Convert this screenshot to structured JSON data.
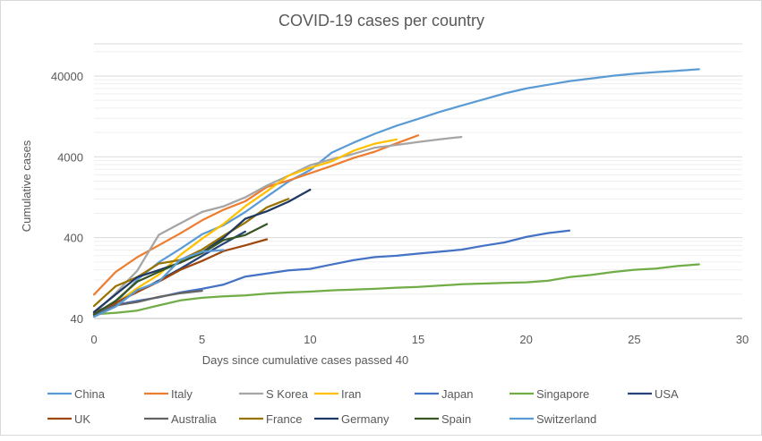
{
  "chart_data": {
    "type": "line",
    "title": "COVID-19 cases per country",
    "xlabel": "Days since cumulative cases passed 40",
    "ylabel": "Cumulative cases",
    "xlim": [
      0,
      30
    ],
    "ylim": [
      40,
      100000
    ],
    "yscale": "log",
    "x_ticks": [
      "0",
      "5",
      "10",
      "15",
      "20",
      "25",
      "30"
    ],
    "y_ticks": [
      "40",
      "400",
      "4000",
      "40000"
    ],
    "x_tick_values": [
      0,
      5,
      10,
      15,
      20,
      25,
      30
    ],
    "y_tick_values": [
      40,
      400,
      4000,
      40000
    ],
    "grid": "horizontal major and minor",
    "legend_position": "bottom",
    "series": [
      {
        "name": "China",
        "color": "#5b9bd5",
        "x": [
          0,
          1,
          2,
          3,
          4,
          5,
          6,
          7,
          8,
          9,
          10,
          11,
          12,
          13,
          14,
          15,
          16,
          17,
          18,
          19,
          20,
          21,
          22,
          23,
          24,
          25,
          26,
          27,
          28
        ],
        "y": [
          45,
          62,
          121,
          198,
          291,
          440,
          571,
          830,
          1287,
          1975,
          2744,
          4515,
          5974,
          7711,
          9692,
          11791,
          14380,
          17205,
          20438,
          24324,
          28018,
          31161,
          34546,
          37198,
          40171,
          42638,
          44653,
          46472,
          48467
        ]
      },
      {
        "name": "Italy",
        "color": "#ed7d31",
        "x": [
          0,
          1,
          2,
          3,
          4,
          5,
          6,
          7,
          8,
          9,
          10,
          11,
          12,
          13,
          14,
          15
        ],
        "y": [
          79,
          150,
          229,
          322,
          453,
          655,
          888,
          1128,
          1694,
          2036,
          2502,
          3089,
          3858,
          4636,
          5883,
          7375
        ]
      },
      {
        "name": "S Korea",
        "color": "#a5a5a5",
        "x": [
          0,
          1,
          2,
          3,
          4,
          5,
          6,
          7,
          8,
          9,
          10,
          11,
          12,
          13,
          14,
          15,
          16,
          17
        ],
        "y": [
          46,
          82,
          156,
          433,
          602,
          833,
          977,
          1261,
          1766,
          2337,
          3150,
          3736,
          4335,
          5186,
          5621,
          6088,
          6593,
          7041
        ]
      },
      {
        "name": "Iran",
        "color": "#ffc000",
        "x": [
          0,
          1,
          2,
          3,
          4,
          5,
          6,
          7,
          8,
          9,
          10,
          11,
          12,
          13,
          14
        ],
        "y": [
          43,
          61,
          95,
          139,
          245,
          388,
          593,
          978,
          1501,
          2336,
          2922,
          3513,
          4747,
          5823,
          6566
        ]
      },
      {
        "name": "Japan",
        "color": "#4472c4",
        "x": [
          0,
          1,
          2,
          3,
          4,
          5,
          6,
          7,
          8,
          9,
          10,
          11,
          12,
          13,
          14,
          15,
          16,
          17,
          18,
          19,
          20,
          21,
          22
        ],
        "y": [
          45,
          59,
          66,
          73,
          84,
          93,
          105,
          132,
          144,
          157,
          164,
          186,
          210,
          230,
          239,
          254,
          268,
          284,
          317,
          349,
          408,
          455,
          488
        ]
      },
      {
        "name": "Singapore",
        "color": "#70ad47",
        "x": [
          0,
          1,
          2,
          3,
          4,
          5,
          6,
          7,
          8,
          9,
          10,
          11,
          12,
          13,
          14,
          15,
          16,
          17,
          18,
          19,
          20,
          21,
          22,
          23,
          24,
          25,
          26,
          27,
          28
        ],
        "y": [
          45,
          47,
          50,
          58,
          67,
          72,
          75,
          77,
          81,
          84,
          86,
          89,
          91,
          93,
          96,
          98,
          102,
          106,
          108,
          110,
          112,
          117,
          130,
          138,
          150,
          160,
          166,
          178,
          187
        ]
      },
      {
        "name": "USA",
        "color": "#264478",
        "x": [
          0,
          1,
          2,
          3,
          4,
          5,
          6,
          7
        ],
        "y": [
          47,
          62,
          85,
          118,
          165,
          238,
          338,
          475
        ]
      },
      {
        "name": "UK",
        "color": "#9e480e",
        "x": [
          0,
          1,
          2,
          3,
          4,
          5,
          6,
          7,
          8
        ],
        "y": [
          47,
          62,
          85,
          114,
          160,
          206,
          273,
          321,
          382
        ]
      },
      {
        "name": "Australia",
        "color": "#636363",
        "x": [
          0,
          1,
          2,
          3,
          4,
          5
        ],
        "y": [
          43,
          58,
          64,
          74,
          82,
          88
        ]
      },
      {
        "name": "France",
        "color": "#997300",
        "x": [
          0,
          1,
          2,
          3,
          4,
          5,
          6,
          7,
          8,
          9
        ],
        "y": [
          57,
          100,
          130,
          191,
          212,
          285,
          423,
          613,
          949,
          1209
        ]
      },
      {
        "name": "Germany",
        "color": "#1f3864",
        "x": [
          0,
          1,
          2,
          3,
          4,
          5,
          6,
          7,
          8,
          9,
          10
        ],
        "y": [
          48,
          79,
          130,
          159,
          196,
          262,
          400,
          684,
          847,
          1112,
          1565
        ]
      },
      {
        "name": "Spain",
        "color": "#375623",
        "x": [
          0,
          1,
          2,
          3,
          4,
          5,
          6,
          7,
          8
        ],
        "y": [
          45,
          66,
          114,
          151,
          198,
          257,
          374,
          430,
          589
        ]
      },
      {
        "name": "Switzerland",
        "color": "#5b9bd5",
        "x": [
          0,
          1,
          2,
          3,
          4,
          5,
          6
        ],
        "y": [
          42,
          56,
          90,
          114,
          214,
          268,
          281
        ]
      }
    ]
  }
}
